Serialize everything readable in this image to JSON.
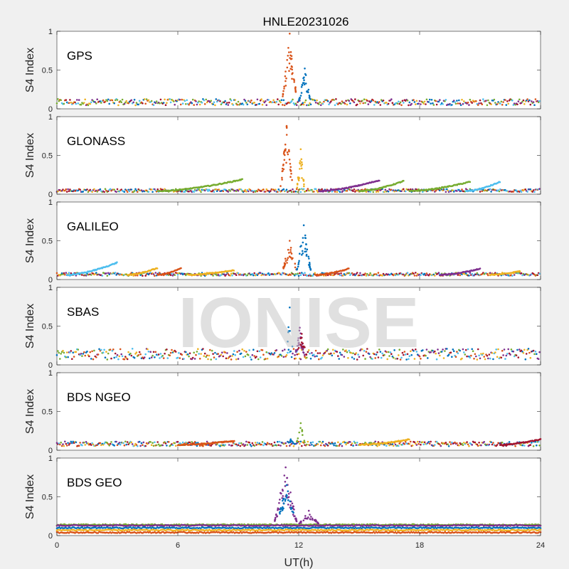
{
  "figure": {
    "title": "HNLE20231026",
    "xlabel": "UT(h)",
    "watermark": "IONISE"
  },
  "colors": [
    "#0072BD",
    "#D95319",
    "#EDB120",
    "#7E2F8E",
    "#77AC30",
    "#4DBEEE",
    "#A2142F"
  ],
  "chart_data": [
    {
      "type": "scatter",
      "label": "GPS",
      "ylabel": "S4 Index",
      "xlim": [
        0,
        24
      ],
      "ylim": [
        0,
        1
      ],
      "xticks": [
        0,
        6,
        12,
        18,
        24
      ],
      "yticks": [
        0,
        0.5,
        1
      ],
      "baseline": 0.07,
      "noise": 0.04,
      "bumps": [],
      "spikes": [
        {
          "x0": 11.2,
          "x1": 11.9,
          "ymax": 0.97,
          "ymin": 0.15,
          "color": 1,
          "n": 40
        },
        {
          "x0": 12.0,
          "x1": 12.6,
          "ymax": 0.52,
          "ymin": 0.1,
          "color": 0,
          "n": 30
        }
      ]
    },
    {
      "type": "scatter",
      "label": "GLONASS",
      "ylabel": "S4 Index",
      "xlim": [
        0,
        24
      ],
      "ylim": [
        0,
        1
      ],
      "xticks": [
        0,
        6,
        12,
        18,
        24
      ],
      "yticks": [
        0,
        0.5,
        1
      ],
      "baseline": 0.04,
      "noise": 0.02,
      "bumps": [
        {
          "x0": 5.0,
          "x1": 9.2,
          "peak": 0.19,
          "color": 4
        },
        {
          "x0": 13.0,
          "x1": 16.0,
          "peak": 0.18,
          "color": 3
        },
        {
          "x0": 15.0,
          "x1": 17.2,
          "peak": 0.17,
          "color": 4
        },
        {
          "x0": 17.5,
          "x1": 20.5,
          "peak": 0.16,
          "color": 4
        },
        {
          "x0": 20.3,
          "x1": 22.0,
          "peak": 0.16,
          "color": 5
        }
      ],
      "spikes": [
        {
          "x0": 11.1,
          "x1": 11.7,
          "ymax": 0.88,
          "ymin": 0.1,
          "color": 1,
          "n": 35
        },
        {
          "x0": 11.9,
          "x1": 12.3,
          "ymax": 0.58,
          "ymin": 0.05,
          "color": 2,
          "n": 25
        }
      ]
    },
    {
      "type": "scatter",
      "label": "GALILEO",
      "ylabel": "S4 Index",
      "xlim": [
        0,
        24
      ],
      "ylim": [
        0,
        1
      ],
      "xticks": [
        0,
        6,
        12,
        18,
        24
      ],
      "yticks": [
        0,
        0.5,
        1
      ],
      "baseline": 0.06,
      "noise": 0.02,
      "bumps": [
        {
          "x0": 0.5,
          "x1": 3.0,
          "peak": 0.22,
          "color": 5
        },
        {
          "x0": 3.5,
          "x1": 5.0,
          "peak": 0.15,
          "color": 2
        },
        {
          "x0": 5.0,
          "x1": 6.2,
          "peak": 0.15,
          "color": 1
        },
        {
          "x0": 6.5,
          "x1": 8.8,
          "peak": 0.12,
          "color": 2
        },
        {
          "x0": 12.8,
          "x1": 14.5,
          "peak": 0.14,
          "color": 1
        },
        {
          "x0": 19.0,
          "x1": 21.0,
          "peak": 0.14,
          "color": 3
        },
        {
          "x0": 21.5,
          "x1": 23.0,
          "peak": 0.11,
          "color": 2
        }
      ],
      "spikes": [
        {
          "x0": 11.2,
          "x1": 11.9,
          "ymax": 0.5,
          "ymin": 0.12,
          "color": 1,
          "n": 30
        },
        {
          "x0": 11.9,
          "x1": 12.6,
          "ymax": 0.7,
          "ymin": 0.12,
          "color": 0,
          "n": 40
        }
      ]
    },
    {
      "type": "scatter",
      "label": "SBAS",
      "ylabel": "S4 Index",
      "xlim": [
        0,
        24
      ],
      "ylim": [
        0,
        1
      ],
      "xticks": [
        0,
        6,
        12,
        18,
        24
      ],
      "yticks": [
        0,
        0.5,
        1
      ],
      "baseline": 0.11,
      "noise": 0.07,
      "bumps": [],
      "spikes": [
        {
          "x0": 11.4,
          "x1": 11.7,
          "ymax": 0.74,
          "ymin": 0.2,
          "color": 0,
          "n": 6
        },
        {
          "x0": 11.8,
          "x1": 12.3,
          "ymax": 0.48,
          "ymin": 0.12,
          "color": 3,
          "n": 25
        },
        {
          "x0": 11.9,
          "x1": 12.4,
          "ymax": 0.4,
          "ymin": 0.12,
          "color": 6,
          "n": 15
        }
      ]
    },
    {
      "type": "scatter",
      "label": "BDS NGEO",
      "ylabel": "S4 Index",
      "xlim": [
        0,
        24
      ],
      "ylim": [
        0,
        1
      ],
      "xticks": [
        0,
        6,
        12,
        18,
        24
      ],
      "yticks": [
        0,
        0.5,
        1
      ],
      "baseline": 0.07,
      "noise": 0.03,
      "bumps": [
        {
          "x0": 6.0,
          "x1": 8.8,
          "peak": 0.12,
          "color": 1
        },
        {
          "x0": 15.0,
          "x1": 17.5,
          "peak": 0.14,
          "color": 2
        },
        {
          "x0": 22.0,
          "x1": 24.0,
          "peak": 0.14,
          "color": 6
        }
      ],
      "spikes": [
        {
          "x0": 11.9,
          "x1": 12.3,
          "ymax": 0.35,
          "ymin": 0.1,
          "color": 4,
          "n": 12
        },
        {
          "x0": 11.4,
          "x1": 11.8,
          "ymax": 0.14,
          "ymin": 0.08,
          "color": 0,
          "n": 6
        }
      ]
    },
    {
      "type": "scatter",
      "label": "BDS GEO",
      "ylabel": "S4 Index",
      "xlim": [
        0,
        24
      ],
      "ylim": [
        0,
        1
      ],
      "xticks": [
        0,
        6,
        12,
        18,
        24
      ],
      "yticks": [
        0,
        0.5,
        1
      ],
      "baseline": 0.1,
      "noise": 0.01,
      "bumps": [],
      "bands": [
        {
          "y": 0.14,
          "color": 4
        },
        {
          "y": 0.13,
          "color": 3
        },
        {
          "y": 0.1,
          "color": 0
        },
        {
          "y": 0.07,
          "color": 2
        },
        {
          "y": 0.04,
          "color": 1
        }
      ],
      "spikes": [
        {
          "x0": 10.8,
          "x1": 11.9,
          "ymax": 0.88,
          "ymin": 0.18,
          "color": 3,
          "n": 55
        },
        {
          "x0": 11.0,
          "x1": 11.8,
          "ymax": 0.65,
          "ymin": 0.25,
          "color": 0,
          "n": 30
        },
        {
          "x0": 12.0,
          "x1": 13.0,
          "ymax": 0.32,
          "ymin": 0.15,
          "color": 3,
          "n": 30
        }
      ]
    }
  ]
}
